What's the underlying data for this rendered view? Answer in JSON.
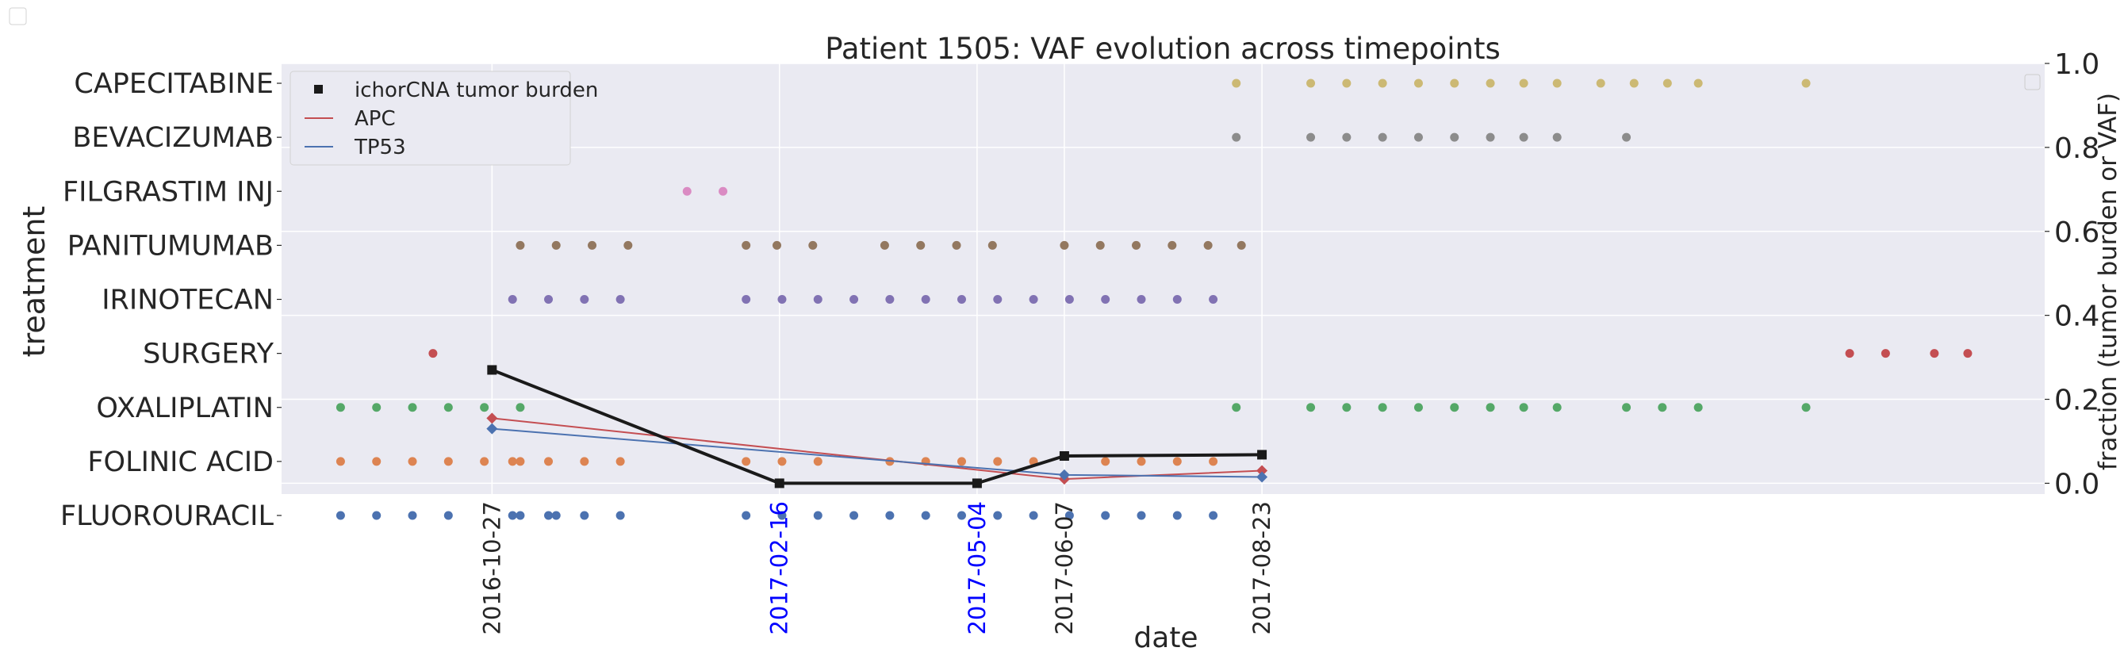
{
  "chart_data": {
    "type": "scatter",
    "title": "Patient 1505: VAF evolution across timepoints",
    "xlabel": "date",
    "ylabel_left": "treatment",
    "ylabel_right": "fraction (tumor burden or VAF)",
    "treatments": [
      "FLUOROURACIL",
      "FOLINIC ACID",
      "OXALIPLATIN",
      "SURGERY",
      "IRINOTECAN",
      "PANITUMUMAB",
      "FILGRASTIM INJ",
      "BEVACIZUMAB",
      "CAPECITABINE"
    ],
    "treatment_colors": {
      "FLUOROURACIL": "#4c72b0",
      "FOLINIC ACID": "#dd8452",
      "OXALIPLATIN": "#55a868",
      "SURGERY": "#c44e52",
      "IRINOTECAN": "#8172b3",
      "PANITUMUMAB": "#937860",
      "FILGRASTIM INJ": "#da8bc3",
      "BEVACIZUMAB": "#8c8c8c",
      "CAPECITABINE": "#ccb974"
    },
    "xlim": [
      "2016-08-06",
      "2018-06-24"
    ],
    "ylim_right": [
      -0.02,
      1.0
    ],
    "right_ticks": [
      "0.0",
      "0.2",
      "0.4",
      "0.6",
      "0.8",
      "1.0"
    ],
    "right_tick_values": [
      0.0,
      0.2,
      0.4,
      0.6,
      0.8,
      1.0
    ],
    "xticks": [
      {
        "label": "2016-10-27",
        "date": "2016-10-27",
        "color": "#262626"
      },
      {
        "label": "2017-02-16",
        "date": "2017-02-16",
        "color": "#0000ff"
      },
      {
        "label": "2017-05-04",
        "date": "2017-05-04",
        "color": "#0000ff"
      },
      {
        "label": "2017-06-07",
        "date": "2017-06-07",
        "color": "#262626"
      },
      {
        "label": "2017-08-23",
        "date": "2017-08-23",
        "color": "#262626"
      }
    ],
    "treatment_dates": {
      "FLUOROURACIL": [
        "2016-08-29",
        "2016-09-12",
        "2016-09-26",
        "2016-10-10",
        "2016-11-07",
        "2016-11-21",
        "2016-11-04",
        "2016-11-18",
        "2016-12-02",
        "2016-12-16",
        "2017-02-03",
        "2017-02-17",
        "2017-03-03",
        "2017-03-17",
        "2017-03-31",
        "2017-04-14",
        "2017-04-28",
        "2017-05-12",
        "2017-05-26",
        "2017-06-09",
        "2017-06-23",
        "2017-07-07",
        "2017-07-21",
        "2017-08-04"
      ],
      "FOLINIC ACID": [
        "2016-08-29",
        "2016-09-12",
        "2016-09-26",
        "2016-10-10",
        "2016-10-24",
        "2016-11-07",
        "2016-11-04",
        "2016-11-18",
        "2016-12-02",
        "2016-12-16",
        "2017-02-03",
        "2017-02-17",
        "2017-03-03",
        "2017-03-31",
        "2017-04-14",
        "2017-04-28",
        "2017-05-12",
        "2017-05-26",
        "2017-06-23",
        "2017-07-07",
        "2017-07-21",
        "2017-08-04"
      ],
      "OXALIPLATIN": [
        "2016-08-29",
        "2016-09-12",
        "2016-09-26",
        "2016-10-10",
        "2016-10-24",
        "2016-11-07",
        "2017-08-13",
        "2017-09-11",
        "2017-09-25",
        "2017-10-09",
        "2017-10-23",
        "2017-11-06",
        "2017-11-20",
        "2017-12-03",
        "2017-12-16",
        "2018-01-12",
        "2018-01-26",
        "2018-02-09",
        "2018-03-23"
      ],
      "SURGERY": [
        "2016-10-04",
        "2018-04-09",
        "2018-04-23",
        "2018-05-12",
        "2018-05-25"
      ],
      "IRINOTECAN": [
        "2016-11-04",
        "2016-11-18",
        "2016-12-02",
        "2016-12-16",
        "2017-02-03",
        "2017-02-17",
        "2017-03-03",
        "2017-03-17",
        "2017-03-31",
        "2017-04-14",
        "2017-04-28",
        "2017-05-12",
        "2017-05-26",
        "2017-06-09",
        "2017-06-23",
        "2017-07-07",
        "2017-07-21",
        "2017-08-04"
      ],
      "PANITUMUMAB": [
        "2016-11-07",
        "2016-11-21",
        "2016-12-05",
        "2016-12-19",
        "2017-02-03",
        "2017-02-15",
        "2017-03-01",
        "2017-03-29",
        "2017-04-12",
        "2017-04-26",
        "2017-05-10",
        "2017-06-07",
        "2017-06-21",
        "2017-07-05",
        "2017-07-19",
        "2017-08-02",
        "2017-08-15"
      ],
      "FILGRASTIM INJ": [
        "2017-01-11",
        "2017-01-25"
      ],
      "BEVACIZUMAB": [
        "2017-08-13",
        "2017-09-11",
        "2017-09-25",
        "2017-10-09",
        "2017-10-23",
        "2017-11-06",
        "2017-11-20",
        "2017-12-03",
        "2017-12-16",
        "2018-01-12"
      ],
      "CAPECITABINE": [
        "2017-08-13",
        "2017-09-11",
        "2017-09-25",
        "2017-10-09",
        "2017-10-23",
        "2017-11-06",
        "2017-11-20",
        "2017-12-03",
        "2017-12-16",
        "2018-01-02",
        "2018-01-15",
        "2018-01-28",
        "2018-02-09",
        "2018-03-23"
      ]
    },
    "series": [
      {
        "name": "ichorCNA tumor burden",
        "color": "#1a1a1a",
        "marker": "square",
        "dates": [
          "2016-10-27",
          "2017-02-16",
          "2017-05-04",
          "2017-06-07",
          "2017-08-23"
        ],
        "values": [
          0.27,
          0.0,
          0.0,
          0.065,
          0.068
        ]
      },
      {
        "name": "APC",
        "color": "#c44e52",
        "marker": "diamond",
        "dates": [
          "2016-10-27",
          "2017-06-07",
          "2017-08-23"
        ],
        "values": [
          0.155,
          0.01,
          0.03
        ]
      },
      {
        "name": "TP53",
        "color": "#4c72b0",
        "marker": "diamond",
        "dates": [
          "2016-10-27",
          "2017-06-07",
          "2017-08-23"
        ],
        "values": [
          0.13,
          0.02,
          0.015
        ]
      }
    ],
    "legend_position": "upper left",
    "grid": true
  }
}
